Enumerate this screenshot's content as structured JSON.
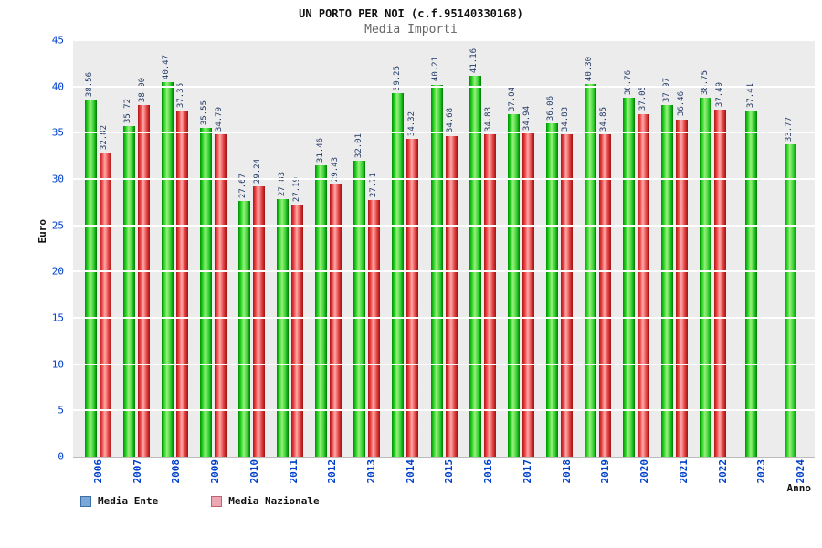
{
  "header": {
    "title": "UN PORTO PER NOI (c.f.95140330168)",
    "subtitle": "Media Importi"
  },
  "chart_data": {
    "type": "bar",
    "title": "UN PORTO PER NOI (c.f.95140330168)",
    "subtitle": "Media Importi",
    "xlabel": "Anno",
    "ylabel": "Euro",
    "ylim": [
      0,
      45
    ],
    "ytick_step": 5,
    "grid": true,
    "legend_position": "bottom-left",
    "categories": [
      "2006",
      "2007",
      "2008",
      "2009",
      "2010",
      "2011",
      "2012",
      "2013",
      "2014",
      "2015",
      "2016",
      "2017",
      "2018",
      "2019",
      "2020",
      "2021",
      "2022",
      "2023",
      "2024"
    ],
    "series": [
      {
        "name": "Media Ente",
        "bar_color": "#00cc00",
        "legend_color": "#7aa7d9",
        "values": [
          38.56,
          35.72,
          40.47,
          35.55,
          27.67,
          27.83,
          31.46,
          32.01,
          39.25,
          40.21,
          41.16,
          37.04,
          36.06,
          40.3,
          38.76,
          37.97,
          38.75,
          37.41,
          33.77
        ]
      },
      {
        "name": "Media Nazionale",
        "bar_color": "#e23b3b",
        "legend_color": "#eda7b2",
        "values": [
          32.82,
          38.0,
          37.36,
          34.79,
          29.24,
          27.19,
          29.43,
          27.71,
          34.32,
          34.68,
          34.83,
          34.94,
          34.83,
          34.85,
          37.05,
          36.46,
          37.49,
          null,
          null
        ]
      }
    ],
    "colors": {
      "axis_text": "#0040cc",
      "value_label": "#223a66",
      "plot_background": "#ececec",
      "gridline": "#ffffff"
    }
  }
}
